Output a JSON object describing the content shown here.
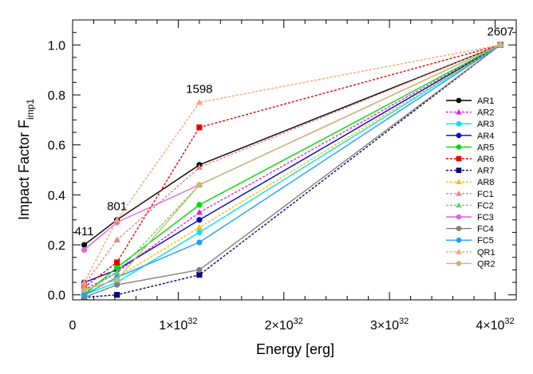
{
  "chart_data": {
    "type": "line",
    "title": "",
    "xlabel": "Energy [erg]",
    "ylabel_main": "Impact Factor F",
    "ylabel_sub": "imp1",
    "xlim": [
      0,
      4.2e+32
    ],
    "ylim": [
      -0.02,
      1.1
    ],
    "x_ticks": [
      {
        "value": 0,
        "base": "0",
        "exp": ""
      },
      {
        "value": 1e+32,
        "base": "1×10",
        "exp": "32"
      },
      {
        "value": 2e+32,
        "base": "2×10",
        "exp": "32"
      },
      {
        "value": 3e+32,
        "base": "3×10",
        "exp": "32"
      },
      {
        "value": 4e+32,
        "base": "4×10",
        "exp": "32"
      }
    ],
    "y_ticks": [
      {
        "value": 0.0,
        "label": "0.0"
      },
      {
        "value": 0.2,
        "label": "0.2"
      },
      {
        "value": 0.4,
        "label": "0.4"
      },
      {
        "value": 0.6,
        "label": "0.6"
      },
      {
        "value": 0.8,
        "label": "0.8"
      },
      {
        "value": 1.0,
        "label": "1.0"
      }
    ],
    "x": [
      1.1e+31,
      4.2e+31,
      1.2e+32,
      4.05e+32
    ],
    "annotations": [
      {
        "text": "411",
        "x": 1.1e+31,
        "y": 0.2
      },
      {
        "text": "801",
        "x": 4.2e+31,
        "y": 0.3
      },
      {
        "text": "1598",
        "x": 1.2e+32,
        "y": 0.77
      },
      {
        "text": "2607",
        "x": 4.05e+32,
        "y": 1.0
      }
    ],
    "series": [
      {
        "name": "AR1",
        "color": "#000000",
        "dash": "solid",
        "marker": "circle",
        "values": [
          0.2,
          0.3,
          0.52,
          1.0
        ]
      },
      {
        "name": "AR2",
        "color": "#e020e0",
        "dash": "dashed",
        "marker": "triangle",
        "values": [
          0.02,
          0.09,
          0.33,
          1.0
        ]
      },
      {
        "name": "AR3",
        "color": "#00e5ee",
        "dash": "solid",
        "marker": "circle",
        "values": [
          0.0,
          0.05,
          0.25,
          1.0
        ]
      },
      {
        "name": "AR4",
        "color": "#0000d0",
        "dash": "solid",
        "marker": "circle",
        "values": [
          0.05,
          0.1,
          0.3,
          1.0
        ]
      },
      {
        "name": "AR5",
        "color": "#00dd00",
        "dash": "solid",
        "marker": "circle",
        "values": [
          0.0,
          0.11,
          0.36,
          1.0
        ]
      },
      {
        "name": "AR6",
        "color": "#ee0000",
        "dash": "dashed",
        "marker": "square",
        "values": [
          0.03,
          0.13,
          0.67,
          1.0
        ]
      },
      {
        "name": "AR7",
        "color": "#000080",
        "dash": "dashed",
        "marker": "square",
        "values": [
          -0.01,
          0.0,
          0.08,
          1.0
        ]
      },
      {
        "name": "AR8",
        "color": "#ffbb00",
        "dash": "dashed",
        "marker": "triangle",
        "values": [
          0.0,
          0.07,
          0.27,
          1.0
        ]
      },
      {
        "name": "FC1",
        "color": "#f08080",
        "dash": "dashed",
        "marker": "triangle",
        "values": [
          0.04,
          0.22,
          0.51,
          1.0
        ]
      },
      {
        "name": "FC2",
        "color": "#66cc66",
        "dash": "dashed",
        "marker": "triangle",
        "values": [
          0.01,
          0.09,
          0.44,
          1.0
        ]
      },
      {
        "name": "FC3",
        "color": "#dd66dd",
        "dash": "solid",
        "marker": "circle",
        "values": [
          0.18,
          0.29,
          0.44,
          1.0
        ]
      },
      {
        "name": "FC4",
        "color": "#808080",
        "dash": "solid",
        "marker": "circle",
        "values": [
          -0.01,
          0.04,
          0.1,
          1.0
        ]
      },
      {
        "name": "FC5",
        "color": "#1ea0f0",
        "dash": "solid",
        "marker": "circle",
        "values": [
          0.0,
          0.07,
          0.21,
          1.0
        ]
      },
      {
        "name": "QR1",
        "color": "#ffa070",
        "dash": "dashed",
        "marker": "triangle",
        "values": [
          0.05,
          0.3,
          0.77,
          1.0
        ]
      },
      {
        "name": "QR2",
        "color": "#c8b870",
        "dash": "solid",
        "marker": "circle",
        "values": [
          0.02,
          0.06,
          0.44,
          1.0
        ]
      }
    ]
  }
}
